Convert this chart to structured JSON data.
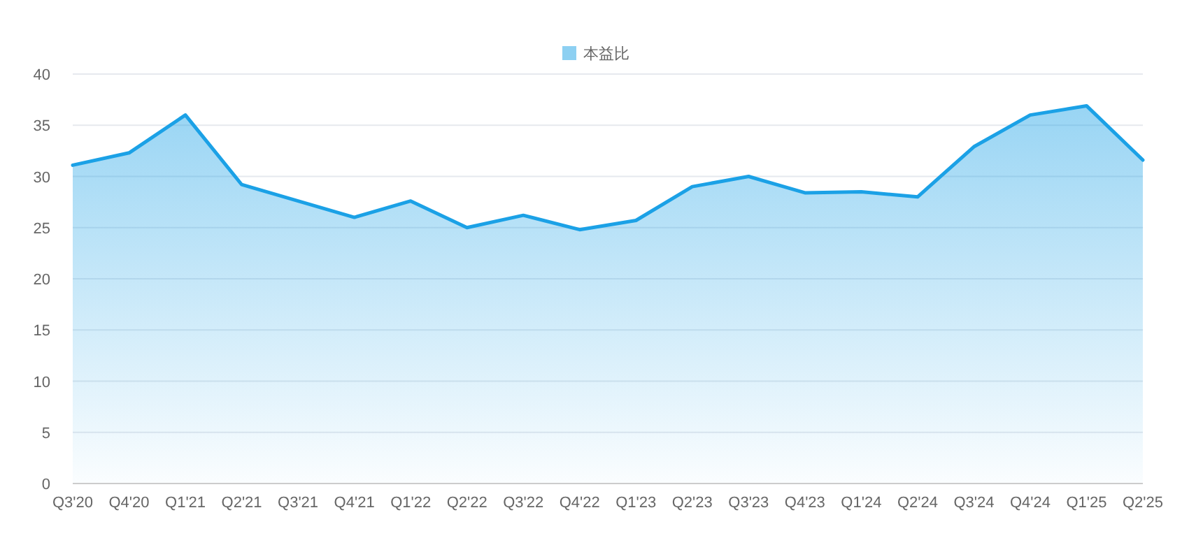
{
  "chart_data": {
    "type": "area",
    "categories": [
      "Q3'20",
      "Q4'20",
      "Q1'21",
      "Q2'21",
      "Q3'21",
      "Q4'21",
      "Q1'22",
      "Q2'22",
      "Q3'22",
      "Q4'22",
      "Q1'23",
      "Q2'23",
      "Q3'23",
      "Q4'23",
      "Q1'24",
      "Q2'24",
      "Q3'24",
      "Q4'24",
      "Q1'25",
      "Q2'25"
    ],
    "series": [
      {
        "name": "本益比",
        "color": "#1ba1e6",
        "values": [
          31.1,
          32.3,
          36.0,
          29.2,
          27.6,
          26.0,
          27.6,
          25.0,
          26.2,
          24.8,
          25.7,
          29.0,
          30.0,
          28.4,
          28.5,
          28.0,
          32.9,
          36.0,
          36.9,
          31.6
        ]
      }
    ],
    "ylim": [
      0,
      40
    ],
    "yticks": [
      0,
      5,
      10,
      15,
      20,
      25,
      30,
      35,
      40
    ],
    "grid": "y",
    "legend": "top"
  }
}
